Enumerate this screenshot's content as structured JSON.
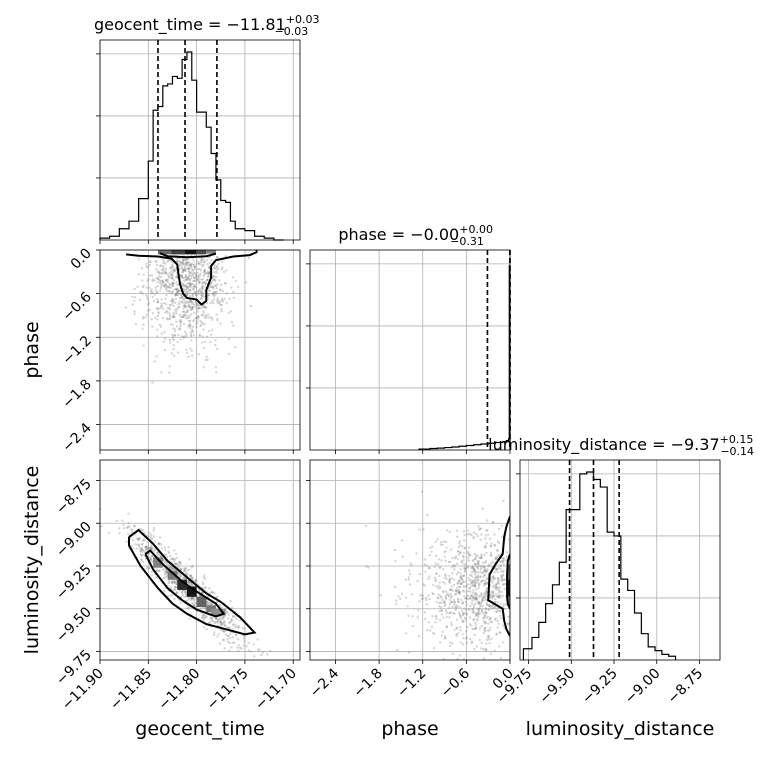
{
  "chart_data": {
    "type": "corner",
    "parameters": [
      "geocent_time",
      "phase",
      "luminosity_distance"
    ],
    "xlabels": [
      "geocent_time",
      "phase",
      "luminosity_distance"
    ],
    "ylabels": [
      "",
      "phase",
      "luminosity_distance"
    ],
    "titles": [
      {
        "param": "geocent_time",
        "prefix": "geocent_time = ",
        "median": "−11.81",
        "plus": "+0.03",
        "minus": "−0.03"
      },
      {
        "param": "phase",
        "prefix": "phase = ",
        "median": "−0.00",
        "plus": "+0.00",
        "minus": "−0.31"
      },
      {
        "param": "luminosity_distance",
        "prefix": "luminosity_distance = ",
        "median": "−9.37",
        "plus": "+0.15",
        "minus": "−0.14"
      }
    ],
    "ranges": {
      "geocent_time": [
        -11.9,
        -11.693
      ],
      "phase": [
        -2.75,
        0.0
      ],
      "luminosity_distance": [
        -9.8,
        -8.63
      ]
    },
    "ticks": {
      "geocent_time": {
        "values": [
          -11.9,
          -11.85,
          -11.8,
          -11.75,
          -11.7
        ],
        "labels": [
          "−11.90",
          "−11.85",
          "−11.80",
          "−11.75",
          "−11.70"
        ]
      },
      "phase": {
        "values": [
          -2.4,
          -1.8,
          -1.2,
          -0.6,
          0.0
        ],
        "labels": [
          "−2.4",
          "−1.8",
          "−1.2",
          "−0.6",
          "0.0"
        ]
      },
      "luminosity_distance": {
        "values": [
          -9.75,
          -9.5,
          -9.25,
          -9.0,
          -8.75
        ],
        "labels": [
          "−9.75",
          "−9.50",
          "−9.25",
          "−9.00",
          "−8.75"
        ]
      }
    },
    "quantiles": {
      "geocent_time": [
        -11.84,
        -11.812,
        -11.779
      ],
      "phase": [
        -0.31,
        -0.003,
        -0.0
      ],
      "luminosity_distance": [
        -9.51,
        -9.37,
        -9.22
      ]
    },
    "histograms": {
      "geocent_time": {
        "edges": [
          -11.9,
          -11.89,
          -11.88,
          -11.87,
          -11.86,
          -11.85,
          -11.845,
          -11.84,
          -11.835,
          -11.83,
          -11.825,
          -11.82,
          -11.815,
          -11.81,
          -11.805,
          -11.8,
          -11.795,
          -11.79,
          -11.785,
          -11.78,
          -11.775,
          -11.77,
          -11.765,
          -11.76,
          -11.75,
          -11.74,
          -11.73,
          -11.72,
          -11.71
        ],
        "counts": [
          0.01,
          0.02,
          0.06,
          0.1,
          0.22,
          0.42,
          0.69,
          0.71,
          0.82,
          0.83,
          0.87,
          0.86,
          0.96,
          1.0,
          0.85,
          0.68,
          0.68,
          0.6,
          0.46,
          0.32,
          0.21,
          0.2,
          0.1,
          0.06,
          0.05,
          0.02,
          0.01,
          0.0
        ]
      },
      "phase": {
        "edges": [
          -1.25,
          -1.1,
          -1.0,
          -0.9,
          -0.8,
          -0.7,
          -0.6,
          -0.5,
          -0.4,
          -0.3,
          -0.2,
          -0.1,
          -0.05,
          -0.02,
          -0.01,
          0.0
        ],
        "counts": [
          0.005,
          0.008,
          0.01,
          0.013,
          0.016,
          0.02,
          0.024,
          0.028,
          0.032,
          0.036,
          0.04,
          0.044,
          0.05,
          0.06,
          0.98
        ]
      },
      "luminosity_distance": {
        "edges": [
          -9.78,
          -9.73,
          -9.69,
          -9.65,
          -9.61,
          -9.57,
          -9.53,
          -9.49,
          -9.45,
          -9.41,
          -9.37,
          -9.33,
          -9.29,
          -9.25,
          -9.21,
          -9.17,
          -9.13,
          -9.09,
          -9.05,
          -9.01,
          -8.97,
          -8.93,
          -8.89
        ],
        "counts": [
          0.06,
          0.12,
          0.2,
          0.3,
          0.4,
          0.52,
          0.8,
          0.8,
          0.99,
          1.0,
          0.96,
          0.92,
          0.68,
          0.66,
          0.43,
          0.37,
          0.25,
          0.14,
          0.07,
          0.05,
          0.03,
          0.02
        ]
      }
    },
    "contours": {
      "geocent_time__phase": {
        "outer": [
          [
            -11.873,
            -0.06
          ],
          [
            -11.86,
            -0.08
          ],
          [
            -11.84,
            -0.09
          ],
          [
            -11.826,
            -0.12
          ],
          [
            -11.82,
            -0.2
          ],
          [
            -11.819,
            -0.32
          ],
          [
            -11.817,
            -0.48
          ],
          [
            -11.814,
            -0.6
          ],
          [
            -11.81,
            -0.66
          ],
          [
            -11.8,
            -0.68
          ],
          [
            -11.795,
            -0.75
          ],
          [
            -11.79,
            -0.7
          ],
          [
            -11.79,
            -0.55
          ],
          [
            -11.785,
            -0.38
          ],
          [
            -11.785,
            -0.22
          ],
          [
            -11.78,
            -0.14
          ],
          [
            -11.762,
            -0.09
          ],
          [
            -11.745,
            -0.07
          ],
          [
            -11.738,
            -0.03
          ],
          [
            -11.738,
            0.0
          ]
        ],
        "inner": [
          [
            -11.838,
            -0.045
          ],
          [
            -11.83,
            -0.085
          ],
          [
            -11.81,
            -0.1
          ],
          [
            -11.79,
            -0.085
          ],
          [
            -11.78,
            -0.05
          ]
        ]
      },
      "geocent_time__luminosity_distance": {
        "outer": [
          [
            -11.87,
            -9.08
          ],
          [
            -11.86,
            -9.04
          ],
          [
            -11.845,
            -9.12
          ],
          [
            -11.83,
            -9.22
          ],
          [
            -11.805,
            -9.34
          ],
          [
            -11.79,
            -9.41
          ],
          [
            -11.775,
            -9.46
          ],
          [
            -11.755,
            -9.55
          ],
          [
            -11.74,
            -9.64
          ],
          [
            -11.75,
            -9.65
          ],
          [
            -11.77,
            -9.62
          ],
          [
            -11.79,
            -9.59
          ],
          [
            -11.81,
            -9.53
          ],
          [
            -11.825,
            -9.47
          ],
          [
            -11.84,
            -9.38
          ],
          [
            -11.858,
            -9.25
          ],
          [
            -11.87,
            -9.13
          ],
          [
            -11.87,
            -9.08
          ]
        ],
        "inner": [
          [
            -11.853,
            -9.18
          ],
          [
            -11.848,
            -9.16
          ],
          [
            -11.835,
            -9.24
          ],
          [
            -11.815,
            -9.34
          ],
          [
            -11.8,
            -9.4
          ],
          [
            -11.78,
            -9.47
          ],
          [
            -11.772,
            -9.53
          ],
          [
            -11.78,
            -9.545
          ],
          [
            -11.8,
            -9.505
          ],
          [
            -11.815,
            -9.45
          ],
          [
            -11.83,
            -9.38
          ],
          [
            -11.845,
            -9.27
          ],
          [
            -11.853,
            -9.18
          ]
        ]
      },
      "phase__luminosity_distance": {
        "outer": [
          [
            0.0,
            -8.96
          ],
          [
            -0.05,
            -9.02
          ],
          [
            -0.08,
            -9.08
          ],
          [
            -0.1,
            -9.18
          ],
          [
            -0.2,
            -9.24
          ],
          [
            -0.28,
            -9.3
          ],
          [
            -0.3,
            -9.45
          ],
          [
            -0.22,
            -9.47
          ],
          [
            -0.1,
            -9.5
          ],
          [
            -0.08,
            -9.57
          ],
          [
            -0.05,
            -9.62
          ],
          [
            0.0,
            -9.66
          ]
        ],
        "inner": [
          [
            0.0,
            -9.18
          ],
          [
            -0.03,
            -9.22
          ],
          [
            -0.04,
            -9.3
          ],
          [
            -0.04,
            -9.43
          ],
          [
            -0.03,
            -9.47
          ],
          [
            0.0,
            -9.5
          ]
        ]
      }
    },
    "density_cells": {
      "geocent_time__phase": [
        [
          -11.84,
          -11.826,
          -0.06,
          0.0,
          0.55
        ],
        [
          -11.826,
          -11.812,
          -0.06,
          0.0,
          0.75
        ],
        [
          -11.812,
          -11.8,
          -0.06,
          0.0,
          0.95
        ],
        [
          -11.8,
          -11.79,
          -0.06,
          0.0,
          0.7
        ],
        [
          -11.79,
          -11.78,
          -0.05,
          0.0,
          0.45
        ]
      ],
      "geocent_time__luminosity_distance": [
        [
          -11.845,
          -11.835,
          -9.2,
          -9.26,
          0.45
        ],
        [
          -11.83,
          -11.82,
          -9.28,
          -9.33,
          0.5
        ],
        [
          -11.82,
          -11.81,
          -9.33,
          -9.39,
          0.85
        ],
        [
          -11.81,
          -11.8,
          -9.37,
          -9.43,
          0.95
        ],
        [
          -11.8,
          -11.79,
          -9.43,
          -9.49,
          0.6
        ],
        [
          -11.79,
          -11.78,
          -9.48,
          -9.52,
          0.5
        ],
        [
          -11.785,
          -11.77,
          -9.5,
          -9.54,
          0.4
        ]
      ],
      "phase__luminosity_distance": [
        [
          -0.04,
          0.0,
          -9.24,
          -9.33,
          0.6
        ],
        [
          -0.04,
          0.0,
          -9.33,
          -9.43,
          0.95
        ],
        [
          -0.04,
          0.0,
          -9.43,
          -9.48,
          0.55
        ]
      ]
    }
  }
}
